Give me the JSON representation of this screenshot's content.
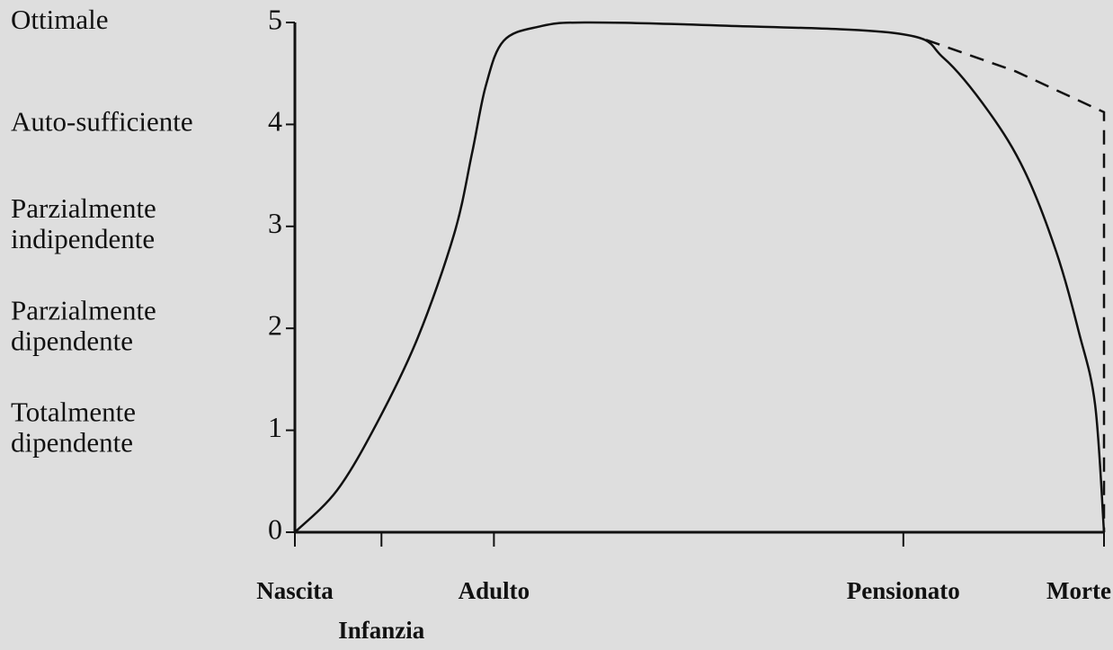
{
  "chart_data": {
    "type": "line",
    "xlim": [
      0,
      100
    ],
    "xticks": [
      {
        "value": 0,
        "label": "Nascita"
      },
      {
        "value": 10.7,
        "label": "Infanzia"
      },
      {
        "value": 24.6,
        "label": "Adulto"
      },
      {
        "value": 75.2,
        "label": "Pensionato"
      },
      {
        "value": 100,
        "label": "Morte"
      }
    ],
    "ylim": [
      0,
      5
    ],
    "yticks": [
      0,
      1,
      2,
      3,
      4,
      5
    ],
    "level_labels": [
      {
        "value": 5,
        "lines": [
          "Ottimale"
        ]
      },
      {
        "value": 4,
        "lines": [
          "Auto-sufficiente"
        ]
      },
      {
        "value": 3,
        "lines": [
          "Parzialmente",
          "indipendente"
        ]
      },
      {
        "value": 2,
        "lines": [
          "Parzialmente",
          "dipendente"
        ]
      },
      {
        "value": 1,
        "lines": [
          "Totalmente",
          "dipendente"
        ]
      }
    ],
    "series": [
      {
        "color": "#111111",
        "style": "solid",
        "x": [
          0,
          5.2,
          10.2,
          15.2,
          19.7,
          21.9,
          23.6,
          25.8,
          30.2,
          35.8,
          52.4,
          74.7,
          80.2,
          85.8,
          90.2,
          94.1,
          96.9,
          98.9,
          100
        ],
        "values": [
          0,
          0.41,
          1.08,
          1.91,
          2.93,
          3.72,
          4.38,
          4.82,
          4.96,
          5.0,
          4.97,
          4.89,
          4.65,
          4.12,
          3.54,
          2.75,
          1.96,
          1.25,
          0
        ]
      },
      {
        "color": "#111111",
        "style": "dashed",
        "x": [
          78,
          89.1,
          100,
          100
        ],
        "values": [
          4.83,
          4.52,
          4.12,
          0
        ]
      }
    ]
  }
}
